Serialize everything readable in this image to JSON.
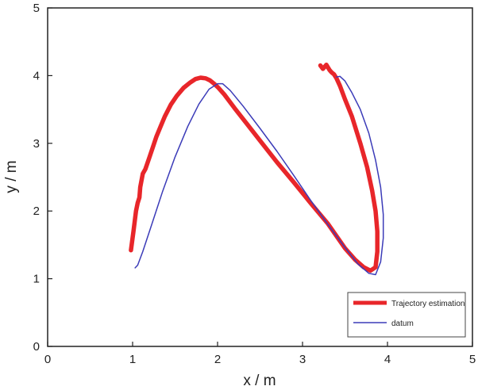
{
  "chart_data": {
    "type": "line",
    "xlabel": "x / m",
    "ylabel": "y / m",
    "xlim": [
      0,
      5
    ],
    "ylim": [
      0,
      5
    ],
    "xticks": [
      0,
      1,
      2,
      3,
      4,
      5
    ],
    "yticks": [
      0,
      1,
      2,
      3,
      4,
      5
    ],
    "grid": false,
    "legend_position": "bottom-right",
    "series": [
      {
        "name": "Trajectory estimation",
        "color": "#e8262a",
        "x": [
          0.98,
          1.01,
          1.04,
          1.06,
          1.08,
          1.09,
          1.12,
          1.15,
          1.2,
          1.24,
          1.28,
          1.33,
          1.38,
          1.45,
          1.52,
          1.6,
          1.68,
          1.74,
          1.8,
          1.86,
          1.91,
          1.96,
          2.01,
          2.08,
          2.2,
          2.35,
          2.5,
          2.7,
          2.9,
          3.1,
          3.3,
          3.5,
          3.62,
          3.72,
          3.8,
          3.86,
          3.88,
          3.88,
          3.86,
          3.82,
          3.76,
          3.68,
          3.58,
          3.5,
          3.44,
          3.4,
          3.37,
          3.34,
          3.32,
          3.3,
          3.28,
          3.24,
          3.21
        ],
        "y": [
          1.42,
          1.7,
          2.0,
          2.12,
          2.2,
          2.35,
          2.55,
          2.62,
          2.8,
          2.95,
          3.1,
          3.25,
          3.4,
          3.57,
          3.7,
          3.82,
          3.9,
          3.95,
          3.97,
          3.96,
          3.93,
          3.88,
          3.82,
          3.72,
          3.52,
          3.28,
          3.04,
          2.72,
          2.42,
          2.11,
          1.81,
          1.45,
          1.28,
          1.17,
          1.12,
          1.17,
          1.4,
          1.7,
          2.0,
          2.3,
          2.65,
          3.0,
          3.4,
          3.65,
          3.85,
          3.96,
          4.02,
          4.05,
          4.08,
          4.12,
          4.16,
          4.1,
          4.15
        ]
      },
      {
        "name": "datum",
        "color": "#3b3bb8",
        "x": [
          1.03,
          1.06,
          1.12,
          1.22,
          1.35,
          1.5,
          1.65,
          1.78,
          1.9,
          2.0,
          2.06,
          2.15,
          2.3,
          2.5,
          2.7,
          2.9,
          3.1,
          3.3,
          3.5,
          3.65,
          3.78,
          3.86,
          3.92,
          3.95,
          3.95,
          3.92,
          3.86,
          3.78,
          3.68,
          3.58,
          3.5,
          3.44,
          3.4
        ],
        "y": [
          1.16,
          1.2,
          1.4,
          1.78,
          2.28,
          2.8,
          3.25,
          3.58,
          3.8,
          3.88,
          3.88,
          3.78,
          3.55,
          3.22,
          2.88,
          2.52,
          2.15,
          1.8,
          1.46,
          1.22,
          1.08,
          1.06,
          1.25,
          1.6,
          1.95,
          2.35,
          2.75,
          3.15,
          3.5,
          3.75,
          3.92,
          3.99,
          3.98
        ]
      }
    ]
  }
}
